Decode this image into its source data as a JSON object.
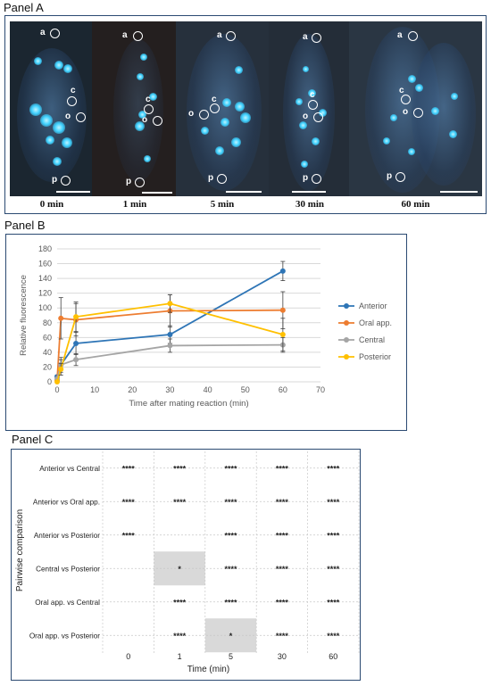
{
  "panelA": {
    "title": "Panel A",
    "panels": [
      {
        "time": "0 min",
        "labels": {
          "a": "a",
          "c": "c",
          "o": "o",
          "p": "p"
        }
      },
      {
        "time": "1 min",
        "labels": {
          "a": "a",
          "c": "c",
          "o": "o",
          "p": "p"
        }
      },
      {
        "time": "5 min",
        "labels": {
          "a": "a",
          "c": "c",
          "o": "o",
          "p": "p"
        }
      },
      {
        "time": "30 min",
        "labels": {
          "a": "a",
          "c": "c",
          "o": "o",
          "p": "p"
        }
      },
      {
        "time": "60 min",
        "labels": {
          "a": "a",
          "c": "c",
          "o": "o",
          "p": "p"
        }
      }
    ]
  },
  "panelB": {
    "title": "Panel B"
  },
  "panelC": {
    "title": "Panel C"
  },
  "chart_data": [
    {
      "type": "line",
      "xlabel": "Time after mating reaction (min)",
      "ylabel": "Relative fluorescence",
      "xlim": [
        0,
        70
      ],
      "ylim": [
        0,
        180
      ],
      "xticks": [
        0,
        10,
        20,
        30,
        40,
        50,
        60,
        70
      ],
      "yticks": [
        0,
        20,
        40,
        60,
        80,
        100,
        120,
        140,
        160,
        180
      ],
      "grid": true,
      "legend_position": "right",
      "series": [
        {
          "name": "Anterior",
          "color": "#2e75b6",
          "x": [
            0,
            1,
            5,
            30,
            60
          ],
          "y": [
            7,
            23,
            52,
            64,
            150
          ],
          "err": [
            2,
            10,
            15,
            12,
            13
          ]
        },
        {
          "name": "Oral app.",
          "color": "#ed7d31",
          "x": [
            0,
            1,
            5,
            30,
            60
          ],
          "y": [
            2,
            86,
            84,
            96,
            97
          ],
          "err": [
            1,
            28,
            22,
            22,
            25
          ]
        },
        {
          "name": "Central",
          "color": "#a5a5a5",
          "x": [
            0,
            1,
            5,
            30,
            60
          ],
          "y": [
            4,
            23,
            30,
            49,
            50
          ],
          "err": [
            1,
            7,
            8,
            9,
            10
          ]
        },
        {
          "name": "Posterior",
          "color": "#ffc000",
          "x": [
            0,
            1,
            5,
            30,
            60
          ],
          "y": [
            0,
            17,
            88,
            106,
            64
          ],
          "err": [
            1,
            8,
            20,
            12,
            22
          ]
        }
      ]
    },
    {
      "type": "table",
      "xlabel": "Time (min)",
      "ylabel": "Pairwise comparison",
      "columns": [
        "0",
        "1",
        "5",
        "30",
        "60"
      ],
      "rows": [
        {
          "label": "Anterior vs Central",
          "cells": [
            "****",
            "****",
            "****",
            "****",
            "****"
          ],
          "shaded": [
            false,
            false,
            false,
            false,
            false
          ]
        },
        {
          "label": "Anterior vs Oral app.",
          "cells": [
            "****",
            "****",
            "****",
            "****",
            "****"
          ],
          "shaded": [
            false,
            false,
            false,
            false,
            false
          ]
        },
        {
          "label": "Anterior vs Posterior",
          "cells": [
            "****",
            "",
            "****",
            "****",
            "****"
          ],
          "shaded": [
            false,
            false,
            false,
            false,
            false
          ]
        },
        {
          "label": "Central vs Posterior",
          "cells": [
            "",
            "*",
            "****",
            "****",
            "****"
          ],
          "shaded": [
            false,
            true,
            false,
            false,
            false
          ]
        },
        {
          "label": "Oral app. vs Central",
          "cells": [
            "",
            "****",
            "****",
            "****",
            "****"
          ],
          "shaded": [
            false,
            false,
            false,
            false,
            false
          ]
        },
        {
          "label": "Oral app. vs Posterior",
          "cells": [
            "",
            "****",
            "*",
            "****",
            "****"
          ],
          "shaded": [
            false,
            false,
            true,
            false,
            false
          ]
        }
      ]
    }
  ]
}
